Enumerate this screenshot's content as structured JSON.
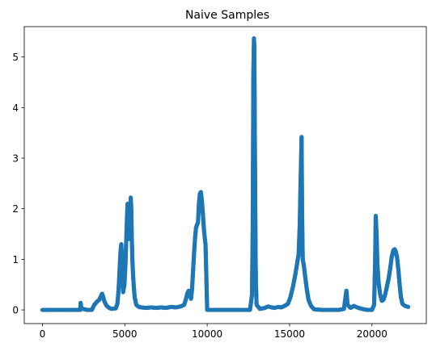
{
  "chart_data": {
    "type": "scatter",
    "title": "Naive Samples",
    "xlabel": "",
    "ylabel": "",
    "xlim": [
      -1100,
      23300
    ],
    "ylim": [
      -0.27,
      5.6
    ],
    "xticks": [
      0,
      5000,
      10000,
      15000,
      20000
    ],
    "xtick_labels": [
      "0",
      "5000",
      "10000",
      "15000",
      "20000"
    ],
    "yticks": [
      0,
      1,
      2,
      3,
      4,
      5
    ],
    "ytick_labels": [
      "0",
      "1",
      "2",
      "3",
      "4",
      "5"
    ],
    "grid": false,
    "marker_color": "#1f77b4",
    "series": [
      {
        "points": [
          [
            0,
            0.0
          ],
          [
            1000,
            0.0
          ],
          [
            2000,
            0.0
          ],
          [
            2300,
            0.0
          ],
          [
            2320,
            0.14
          ],
          [
            2360,
            0.03
          ],
          [
            2700,
            0.0
          ],
          [
            3000,
            0.0
          ],
          [
            3150,
            0.1
          ],
          [
            3300,
            0.16
          ],
          [
            3450,
            0.2
          ],
          [
            3550,
            0.27
          ],
          [
            3620,
            0.32
          ],
          [
            3680,
            0.27
          ],
          [
            3750,
            0.18
          ],
          [
            3900,
            0.08
          ],
          [
            4050,
            0.04
          ],
          [
            4200,
            0.02
          ],
          [
            4450,
            0.03
          ],
          [
            4550,
            0.12
          ],
          [
            4600,
            0.3
          ],
          [
            4650,
            0.55
          ],
          [
            4700,
            0.9
          ],
          [
            4750,
            1.2
          ],
          [
            4790,
            1.3
          ],
          [
            4820,
            1.05
          ],
          [
            4850,
            0.7
          ],
          [
            4880,
            0.5
          ],
          [
            4900,
            0.35
          ],
          [
            4980,
            0.5
          ],
          [
            5040,
            0.9
          ],
          [
            5090,
            1.4
          ],
          [
            5130,
            1.8
          ],
          [
            5170,
            2.1
          ],
          [
            5210,
            1.95
          ],
          [
            5250,
            1.6
          ],
          [
            5280,
            1.4
          ],
          [
            5320,
            1.9
          ],
          [
            5360,
            2.22
          ],
          [
            5390,
            2.05
          ],
          [
            5420,
            1.5
          ],
          [
            5460,
            1.0
          ],
          [
            5500,
            0.7
          ],
          [
            5550,
            0.45
          ],
          [
            5600,
            0.25
          ],
          [
            5700,
            0.1
          ],
          [
            5850,
            0.06
          ],
          [
            6000,
            0.05
          ],
          [
            6300,
            0.04
          ],
          [
            6600,
            0.05
          ],
          [
            6900,
            0.04
          ],
          [
            7200,
            0.05
          ],
          [
            7500,
            0.04
          ],
          [
            7800,
            0.06
          ],
          [
            8100,
            0.05
          ],
          [
            8400,
            0.07
          ],
          [
            8600,
            0.1
          ],
          [
            8700,
            0.2
          ],
          [
            8800,
            0.33
          ],
          [
            8880,
            0.38
          ],
          [
            8960,
            0.3
          ],
          [
            9020,
            0.22
          ],
          [
            9080,
            0.4
          ],
          [
            9140,
            0.75
          ],
          [
            9200,
            1.1
          ],
          [
            9260,
            1.4
          ],
          [
            9320,
            1.62
          ],
          [
            9380,
            1.68
          ],
          [
            9440,
            1.72
          ],
          [
            9500,
            2.1
          ],
          [
            9560,
            2.3
          ],
          [
            9620,
            2.33
          ],
          [
            9680,
            2.15
          ],
          [
            9740,
            1.9
          ],
          [
            9800,
            1.6
          ],
          [
            9860,
            1.4
          ],
          [
            9900,
            1.3
          ],
          [
            10000,
            0.0
          ],
          [
            10500,
            0.0
          ],
          [
            11000,
            0.0
          ],
          [
            11500,
            0.0
          ],
          [
            12000,
            0.0
          ],
          [
            12400,
            0.0
          ],
          [
            12600,
            0.0
          ],
          [
            12720,
            0.3
          ],
          [
            12760,
            1.5
          ],
          [
            12790,
            3.6
          ],
          [
            12800,
            4.6
          ],
          [
            12820,
            5.0
          ],
          [
            12840,
            5.37
          ],
          [
            12860,
            5.2
          ],
          [
            12880,
            4.2
          ],
          [
            12900,
            3.0
          ],
          [
            12920,
            2.0
          ],
          [
            12940,
            1.0
          ],
          [
            12960,
            0.5
          ],
          [
            13000,
            0.1
          ],
          [
            13200,
            0.02
          ],
          [
            13500,
            0.04
          ],
          [
            13700,
            0.07
          ],
          [
            13900,
            0.05
          ],
          [
            14100,
            0.04
          ],
          [
            14300,
            0.06
          ],
          [
            14500,
            0.05
          ],
          [
            14700,
            0.08
          ],
          [
            14900,
            0.12
          ],
          [
            15050,
            0.25
          ],
          [
            15200,
            0.45
          ],
          [
            15350,
            0.7
          ],
          [
            15450,
            0.9
          ],
          [
            15550,
            1.1
          ],
          [
            15620,
            1.7
          ],
          [
            15660,
            2.4
          ],
          [
            15700,
            3.0
          ],
          [
            15730,
            3.42
          ],
          [
            15760,
            1.9
          ],
          [
            15800,
            1.0
          ],
          [
            15880,
            0.85
          ],
          [
            15950,
            0.65
          ],
          [
            16050,
            0.4
          ],
          [
            16150,
            0.2
          ],
          [
            16300,
            0.08
          ],
          [
            16500,
            0.01
          ],
          [
            17000,
            0.0
          ],
          [
            17500,
            0.0
          ],
          [
            18000,
            0.0
          ],
          [
            18300,
            0.02
          ],
          [
            18450,
            0.38
          ],
          [
            18520,
            0.1
          ],
          [
            18700,
            0.04
          ],
          [
            18900,
            0.08
          ],
          [
            19100,
            0.05
          ],
          [
            19400,
            0.02
          ],
          [
            19700,
            0.0
          ],
          [
            20000,
            0.0
          ],
          [
            20130,
            0.1
          ],
          [
            20190,
            0.9
          ],
          [
            20230,
            1.86
          ],
          [
            20280,
            1.5
          ],
          [
            20330,
            0.9
          ],
          [
            20400,
            0.55
          ],
          [
            20500,
            0.3
          ],
          [
            20600,
            0.18
          ],
          [
            20700,
            0.2
          ],
          [
            20800,
            0.3
          ],
          [
            20900,
            0.45
          ],
          [
            21000,
            0.6
          ],
          [
            21100,
            0.8
          ],
          [
            21200,
            1.05
          ],
          [
            21300,
            1.18
          ],
          [
            21380,
            1.2
          ],
          [
            21450,
            1.15
          ],
          [
            21520,
            1.05
          ],
          [
            21600,
            0.8
          ],
          [
            21680,
            0.5
          ],
          [
            21760,
            0.25
          ],
          [
            21850,
            0.12
          ],
          [
            22000,
            0.08
          ],
          [
            22200,
            0.06
          ]
        ]
      }
    ]
  }
}
